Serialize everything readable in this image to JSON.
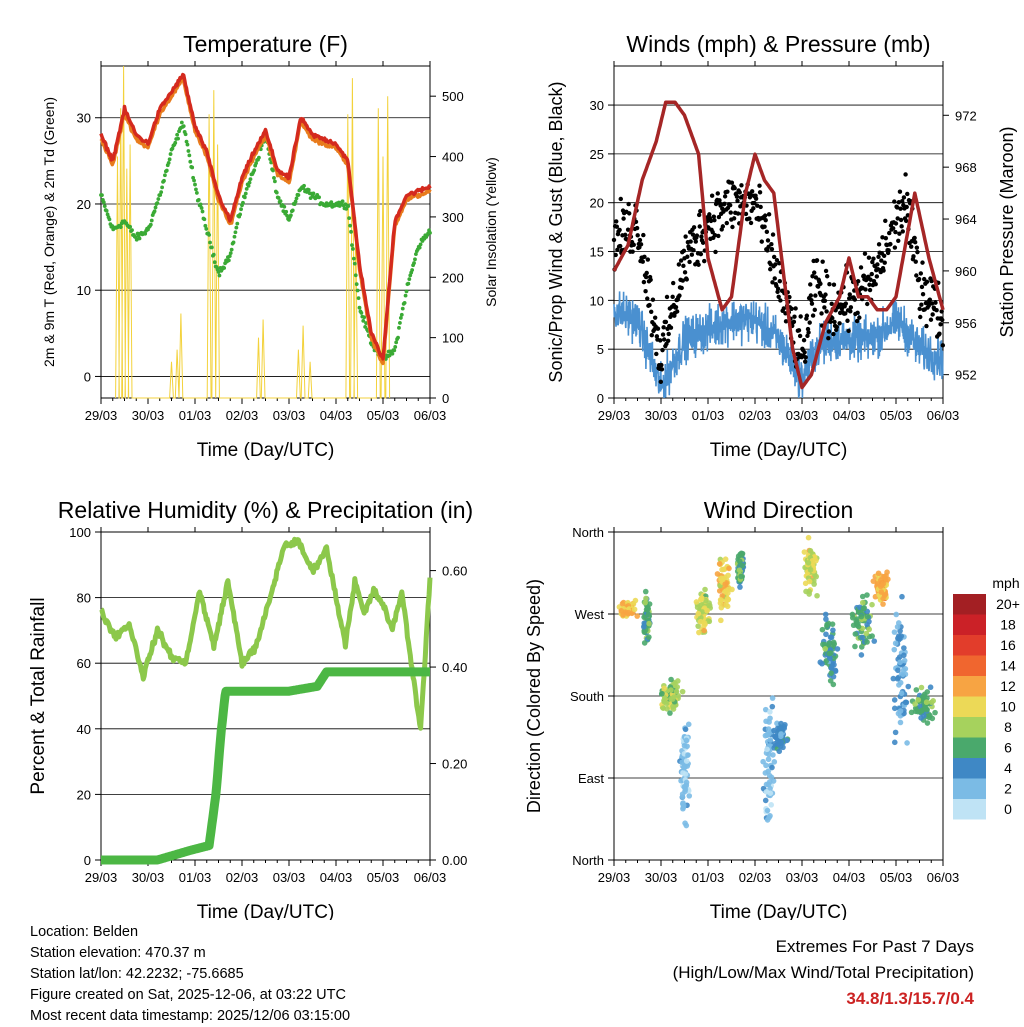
{
  "x_tick_labels": [
    "29/03",
    "30/03",
    "01/03",
    "02/03",
    "03/03",
    "04/03",
    "05/03",
    "06/03"
  ],
  "footer": {
    "location": "Location: Belden",
    "elevation": "Station elevation: 470.37 m",
    "latlon": "Station lat/lon: 42.2232; -75.6685",
    "created": "Figure created on Sat, 2025-12-06, at 03:22 UTC",
    "recent": "Most recent data timestamp: 2025/12/06 03:15:00"
  },
  "extremes": {
    "title": "Extremes For Past 7 Days",
    "subtitle": "(High/Low/Max Wind/Total Precipitation)",
    "value": "34.8/1.3/15.7/0.4"
  },
  "colors": {
    "temp_2m": "#d42a1e",
    "temp_9m": "#e87b1c",
    "dewpoint": "#3aaa35",
    "solar": "#f3d23c",
    "wind": "#4a90d0",
    "gust": "#000000",
    "pressure": "#a52626",
    "rh": "#8cc84b",
    "precip": "#4cb744"
  },
  "chart_data": [
    {
      "type": "line",
      "title": "Temperature (F)",
      "xlabel": "Time (Day/UTC)",
      "ylabel": "2m & 9m T (Red, Orange) & 2m Td (Green)",
      "ylabel_right": "Solar Insolation (Yellow)",
      "xlim": [
        0,
        7
      ],
      "ylim": [
        -2.5,
        36
      ],
      "ylim_right": [
        0,
        550
      ],
      "yticks": [
        0,
        10,
        20,
        30
      ],
      "yticks_right": [
        0,
        100,
        200,
        300,
        400,
        500
      ],
      "x_days": [
        0,
        0.25,
        0.5,
        0.75,
        1,
        1.25,
        1.5,
        1.75,
        2,
        2.25,
        2.5,
        2.75,
        3,
        3.25,
        3.5,
        3.75,
        4,
        4.25,
        4.5,
        4.75,
        5,
        5.25,
        5.5,
        5.75,
        6,
        6.25,
        6.5,
        6.75,
        7
      ],
      "series": [
        {
          "name": "2m T",
          "values": [
            28,
            25,
            31,
            28,
            27,
            31,
            33,
            35,
            29,
            26,
            21,
            18,
            23,
            26,
            28.5,
            24,
            23,
            30,
            28,
            27.5,
            27,
            25,
            13,
            5,
            2,
            18,
            21,
            21.5,
            22
          ]
        },
        {
          "name": "9m T",
          "values": [
            27.5,
            24.5,
            30.5,
            27.5,
            26.5,
            30.5,
            32.5,
            34.5,
            28.5,
            25.5,
            20.5,
            17.5,
            22.5,
            25.5,
            28,
            23.5,
            22.5,
            29.5,
            27.5,
            27,
            26.5,
            24.5,
            12.5,
            4.5,
            1.5,
            17.5,
            20.5,
            21,
            21.5
          ]
        },
        {
          "name": "2m Td",
          "values": [
            21,
            17,
            18,
            16,
            17,
            21,
            26,
            29.5,
            22,
            17,
            12,
            14,
            20,
            24,
            28,
            21,
            18,
            22,
            21,
            20,
            20,
            20,
            8,
            4,
            2,
            3,
            10,
            15,
            17
          ]
        }
      ],
      "solar_series": {
        "name": "Solar Insolation",
        "days": [
          0.35,
          0.42,
          0.48,
          0.55,
          0.62,
          1.5,
          1.62,
          1.7,
          2.3,
          2.4,
          2.48,
          3.35,
          3.45,
          4.2,
          4.3,
          4.45,
          5.25,
          5.35,
          5.42,
          5.9,
          6.0,
          6.1
        ],
        "values": [
          400,
          480,
          550,
          380,
          420,
          60,
          80,
          140,
          470,
          510,
          420,
          100,
          130,
          80,
          120,
          60,
          470,
          530,
          300,
          480,
          400,
          500
        ]
      }
    },
    {
      "type": "scatter",
      "title": "Winds (mph) & Pressure (mb)",
      "xlabel": "Time (Day/UTC)",
      "ylabel": "Sonic/Prop Wind & Gust (Blue, Black)",
      "ylabel_right": "Station Pressure (Maroon)",
      "xlim": [
        0,
        7
      ],
      "ylim": [
        0,
        34
      ],
      "ylim_right": [
        950.2,
        975.8
      ],
      "yticks": [
        0,
        5,
        10,
        15,
        20,
        25,
        30
      ],
      "yticks_right": [
        952,
        956,
        960,
        964,
        968,
        972
      ],
      "pressure_days": [
        0,
        0.3,
        0.6,
        0.9,
        1.1,
        1.3,
        1.5,
        1.8,
        2,
        2.3,
        2.5,
        2.8,
        3,
        3.2,
        3.4,
        3.6,
        3.8,
        4.0,
        4.2,
        4.5,
        4.8,
        5.0,
        5.2,
        5.4,
        5.6,
        5.8,
        6.0,
        6.2,
        6.4,
        6.7,
        7
      ],
      "pressure_values": [
        960,
        962,
        967,
        970,
        973,
        973,
        972,
        969,
        961,
        957,
        958,
        966,
        969,
        967,
        966,
        960,
        954,
        951,
        952,
        956,
        958,
        961,
        958,
        958,
        957,
        957,
        958,
        962,
        966,
        961,
        957
      ],
      "wind_mean_days": [
        0,
        0.5,
        1,
        1.2,
        1.5,
        2,
        2.5,
        3,
        3.5,
        4,
        4.3,
        4.6,
        5,
        5.5,
        6,
        6.2,
        6.5,
        7
      ],
      "wind_mean_values": [
        9,
        8,
        1,
        3,
        6,
        7,
        8,
        8,
        6,
        2,
        5,
        6,
        6,
        6,
        8,
        7,
        5,
        4
      ],
      "gust_mean_values": [
        16,
        18,
        4,
        8,
        14,
        18,
        20,
        20,
        12,
        4,
        12,
        9,
        10,
        12,
        18,
        20,
        12,
        8
      ]
    },
    {
      "type": "line",
      "title": "Relative Humidity (%) & Precipitation (in)",
      "xlabel": "Time (Day/UTC)",
      "ylabel": "Percent & Total Rainfall",
      "xlim": [
        0,
        7
      ],
      "ylim": [
        0,
        100
      ],
      "ylim_right": [
        0,
        0.68
      ],
      "yticks": [
        0,
        20,
        40,
        60,
        80,
        100
      ],
      "yticks_right": [
        0.0,
        0.2,
        0.4,
        0.6
      ],
      "rh_days": [
        0,
        0.3,
        0.6,
        0.9,
        1.2,
        1.5,
        1.8,
        2.1,
        2.4,
        2.7,
        3.0,
        3.3,
        3.6,
        3.9,
        4.2,
        4.5,
        4.8,
        5.0,
        5.2,
        5.4,
        5.6,
        5.8,
        6.0,
        6.2,
        6.4,
        6.6,
        6.8,
        7
      ],
      "rh_values": [
        76,
        68,
        72,
        56,
        70,
        62,
        60,
        82,
        65,
        85,
        60,
        65,
        80,
        96,
        97,
        88,
        95,
        80,
        66,
        85,
        75,
        82,
        78,
        70,
        82,
        60,
        40,
        86
      ],
      "precip_days": [
        0,
        1.2,
        1.9,
        2.3,
        2.45,
        2.55,
        2.65,
        3,
        4,
        4.6,
        4.8,
        5.2,
        6,
        7
      ],
      "precip_values": [
        0.0,
        0.0,
        0.02,
        0.03,
        0.14,
        0.26,
        0.35,
        0.35,
        0.35,
        0.36,
        0.39,
        0.39,
        0.39,
        0.39
      ]
    },
    {
      "type": "scatter",
      "title": "Wind Direction",
      "xlabel": "Time (Day/UTC)",
      "ylabel": "Direction (Colored By Speed)",
      "xlim": [
        0,
        7
      ],
      "ylim": [
        0,
        360
      ],
      "yticks": [
        0,
        90,
        180,
        270,
        360
      ],
      "ytick_labels": [
        "North",
        "East",
        "South",
        "West",
        "North"
      ],
      "legend_title": "mph",
      "legend_labels": [
        "20+",
        "18",
        "16",
        "14",
        "12",
        "10",
        "8",
        "6",
        "4",
        "2",
        "0"
      ],
      "legend_colors": [
        "#a31f23",
        "#cb2127",
        "#e23d2b",
        "#f0662f",
        "#f7a443",
        "#ecd957",
        "#a6d25d",
        "#4aa96c",
        "#3f88c5",
        "#7bbbe5",
        "#bfe3f5"
      ],
      "clusters": [
        {
          "day": 0.3,
          "dir": 275,
          "speed": 11,
          "spread": 0.25,
          "dspread": 12
        },
        {
          "day": 0.7,
          "dir": 265,
          "speed": 6,
          "spread": 0.1,
          "dspread": 35
        },
        {
          "day": 1.2,
          "dir": 180,
          "speed": 8,
          "spread": 0.3,
          "dspread": 25
        },
        {
          "day": 1.5,
          "dir": 100,
          "speed": 2,
          "spread": 0.15,
          "dspread": 80
        },
        {
          "day": 1.9,
          "dir": 270,
          "speed": 9,
          "spread": 0.2,
          "dspread": 30
        },
        {
          "day": 2.35,
          "dir": 300,
          "speed": 10,
          "spread": 0.2,
          "dspread": 40
        },
        {
          "day": 2.7,
          "dir": 320,
          "speed": 6,
          "spread": 0.1,
          "dspread": 25
        },
        {
          "day": 3.3,
          "dir": 110,
          "speed": 2,
          "spread": 0.15,
          "dspread": 100
        },
        {
          "day": 3.55,
          "dir": 135,
          "speed": 4,
          "spread": 0.2,
          "dspread": 25
        },
        {
          "day": 4.2,
          "dir": 320,
          "speed": 9,
          "spread": 0.2,
          "dspread": 35
        },
        {
          "day": 4.6,
          "dir": 230,
          "speed": 5,
          "spread": 0.25,
          "dspread": 50
        },
        {
          "day": 5.3,
          "dir": 260,
          "speed": 6,
          "spread": 0.3,
          "dspread": 40
        },
        {
          "day": 5.7,
          "dir": 300,
          "speed": 12,
          "spread": 0.2,
          "dspread": 25
        },
        {
          "day": 6.1,
          "dir": 200,
          "speed": 3,
          "spread": 0.2,
          "dspread": 100
        },
        {
          "day": 6.6,
          "dir": 170,
          "speed": 6,
          "spread": 0.3,
          "dspread": 25
        }
      ]
    }
  ]
}
